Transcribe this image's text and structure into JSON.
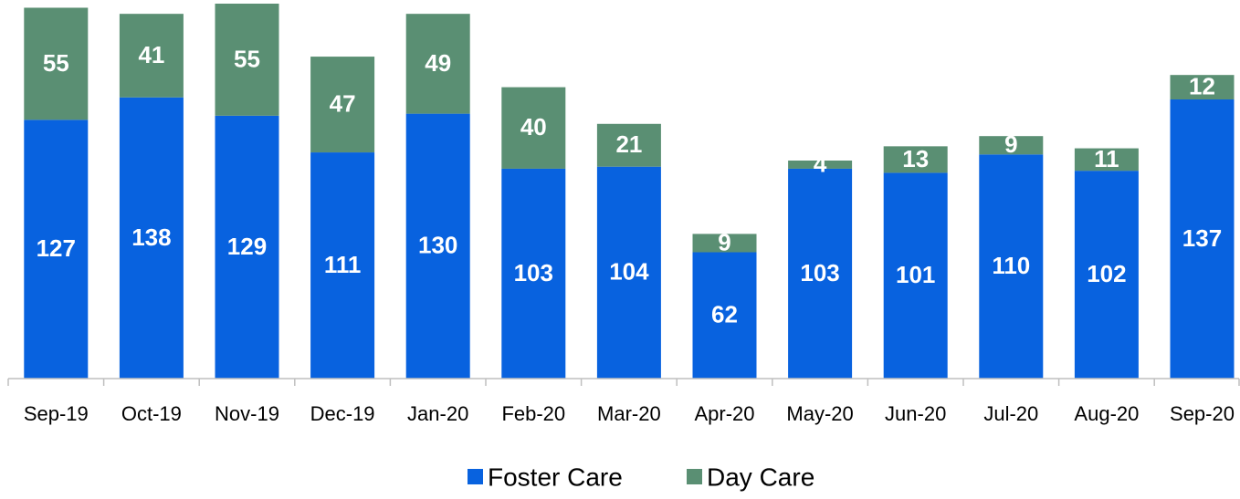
{
  "chart_data": {
    "type": "stacked_bar",
    "categories": [
      "Sep-19",
      "Oct-19",
      "Nov-19",
      "Dec-19",
      "Jan-20",
      "Feb-20",
      "Mar-20",
      "Apr-20",
      "May-20",
      "Jun-20",
      "Jul-20",
      "Aug-20",
      "Sep-20"
    ],
    "series": [
      {
        "name": "Foster Care",
        "color": "#0862df",
        "values": [
          127,
          138,
          129,
          111,
          130,
          103,
          104,
          62,
          103,
          101,
          110,
          102,
          137
        ]
      },
      {
        "name": "Day Care",
        "color": "#5a8f73",
        "values": [
          55,
          41,
          55,
          47,
          49,
          40,
          21,
          9,
          4,
          13,
          9,
          11,
          12
        ]
      }
    ],
    "legend": "bottom"
  }
}
